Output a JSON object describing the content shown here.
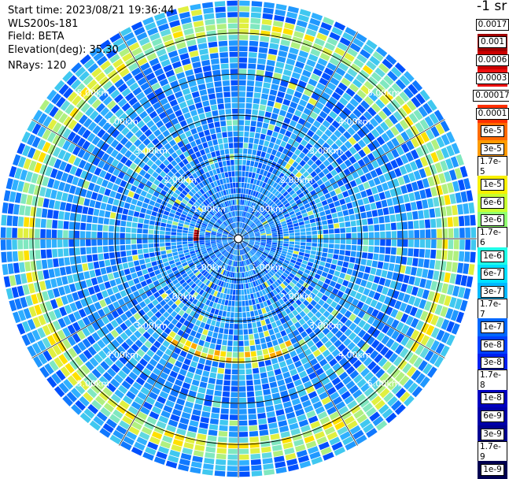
{
  "info": {
    "start_time": "Start time: 2023/08/21 19:36:44",
    "instrument": "WLS200s-181",
    "field": "Field: BETA",
    "elevation": "Elevation(deg): 35.30",
    "nrays": "NRays: 120"
  },
  "colorbar": {
    "unit": "-1 sr",
    "labels": [
      "0.0017",
      "0.001",
      "0.0006",
      "0.0003",
      "0.00017",
      "0.0001",
      "6e-5",
      "3e-5",
      "1.7e-5",
      "1e-5",
      "6e-6",
      "3e-6",
      "1.7e-6",
      "1e-6",
      "6e-7",
      "3e-7",
      "1.7e-7",
      "1e-7",
      "6e-8",
      "3e-8",
      "1.7e-8",
      "1e-8",
      "6e-9",
      "3e-9",
      "1.7e-9",
      "1e-9"
    ],
    "colors": [
      "#ffffff",
      "#a00000",
      "#cc0000",
      "#ee1010",
      "#ffffff",
      "#ff3000",
      "#ff6a00",
      "#ff9a00",
      "#ffc800",
      "#f8f000",
      "#c8ff30",
      "#90ff70",
      "#50ffb0",
      "#20ffe8",
      "#00e0ff",
      "#00b8ff",
      "#0090ff",
      "#0068ff",
      "#0040ff",
      "#0020f0",
      "#0000e0",
      "#0000c0",
      "#0000a8",
      "#000090",
      "#000070",
      "#000050"
    ]
  },
  "range_rings": {
    "labels_km": [
      1.0,
      2.0,
      3.0,
      4.0,
      5.0
    ],
    "labels": [
      "1.00km",
      "2.00km",
      "3.00km",
      "4.00km",
      "5.00km"
    ],
    "max_km": 5.8
  },
  "scan": {
    "rays": 120,
    "gates": 42,
    "aerosol_ring_km": 5.1,
    "cloud_arc_km": 2.85
  }
}
